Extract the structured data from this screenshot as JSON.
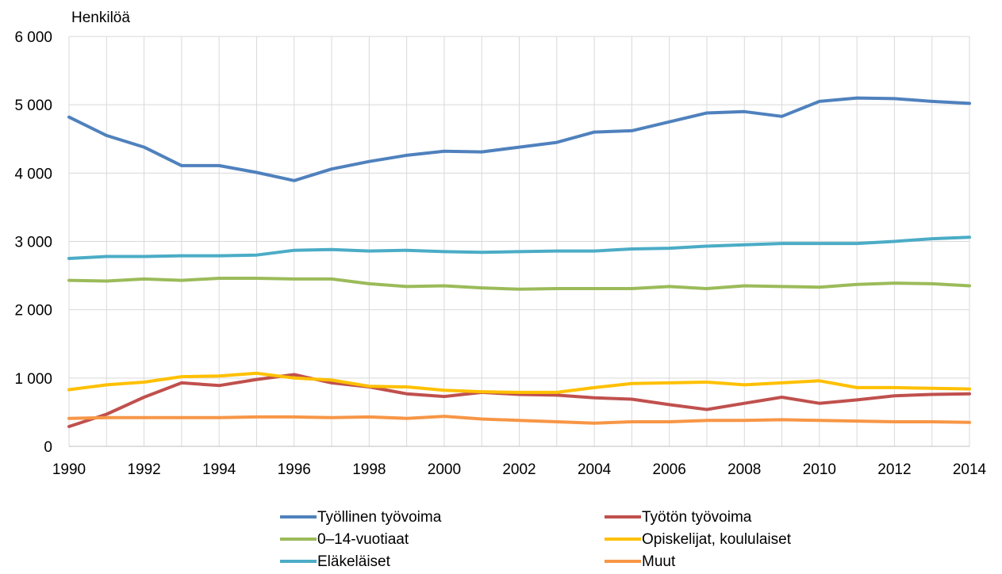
{
  "chart_data": {
    "type": "line",
    "ylabel": "Henkilöä",
    "ylim": [
      0,
      6000
    ],
    "yticks": [
      0,
      1000,
      2000,
      3000,
      4000,
      5000,
      6000
    ],
    "ytick_labels": [
      "0",
      "1 000",
      "2 000",
      "3 000",
      "4 000",
      "5 000",
      "6 000"
    ],
    "xlim": [
      1990,
      2014
    ],
    "xtick_labels": [
      "1990",
      "1992",
      "1994",
      "1996",
      "1998",
      "2000",
      "2002",
      "2004",
      "2006",
      "2008",
      "2010",
      "2012",
      "2014"
    ],
    "grid": "vertical and horizontal",
    "legend_position": "bottom",
    "x": [
      1990,
      1991,
      1992,
      1993,
      1994,
      1995,
      1996,
      1997,
      1998,
      1999,
      2000,
      2001,
      2002,
      2003,
      2004,
      2005,
      2006,
      2007,
      2008,
      2009,
      2010,
      2011,
      2012,
      2013,
      2014
    ],
    "series": [
      {
        "name": "Työllinen työvoima",
        "color": "#4F81BD",
        "values": [
          4820,
          4550,
          4380,
          4110,
          4110,
          4010,
          3890,
          4060,
          4170,
          4260,
          4320,
          4310,
          4380,
          4450,
          4600,
          4620,
          4750,
          4880,
          4900,
          4830,
          5050,
          5100,
          5090,
          5050,
          5020
        ]
      },
      {
        "name": "Työtön työvoima",
        "color": "#C0504D",
        "values": [
          290,
          470,
          720,
          930,
          890,
          980,
          1050,
          930,
          870,
          770,
          730,
          790,
          760,
          750,
          710,
          690,
          610,
          540,
          630,
          720,
          630,
          680,
          740,
          760,
          770
        ]
      },
      {
        "name": "0–14-vuotiaat",
        "color": "#9BBB59",
        "values": [
          2430,
          2420,
          2450,
          2430,
          2460,
          2460,
          2450,
          2450,
          2380,
          2340,
          2350,
          2320,
          2300,
          2310,
          2310,
          2310,
          2340,
          2310,
          2350,
          2340,
          2330,
          2370,
          2390,
          2380,
          2350
        ]
      },
      {
        "name": "Opiskelijat, koululaiset",
        "color": "#FFC000",
        "values": [
          830,
          900,
          940,
          1020,
          1030,
          1070,
          1000,
          970,
          880,
          870,
          820,
          800,
          790,
          790,
          860,
          920,
          930,
          940,
          900,
          930,
          960,
          860,
          860,
          850,
          840
        ]
      },
      {
        "name": "Eläkeläiset",
        "color": "#4BACC6",
        "values": [
          2750,
          2780,
          2780,
          2790,
          2790,
          2800,
          2870,
          2880,
          2860,
          2870,
          2850,
          2840,
          2850,
          2860,
          2860,
          2890,
          2900,
          2930,
          2950,
          2970,
          2970,
          2970,
          3000,
          3040,
          3060
        ]
      },
      {
        "name": "Muut",
        "color": "#F79646",
        "values": [
          410,
          420,
          420,
          420,
          420,
          430,
          430,
          420,
          430,
          410,
          440,
          400,
          380,
          360,
          340,
          360,
          360,
          380,
          380,
          390,
          380,
          370,
          360,
          360,
          350
        ]
      }
    ]
  }
}
